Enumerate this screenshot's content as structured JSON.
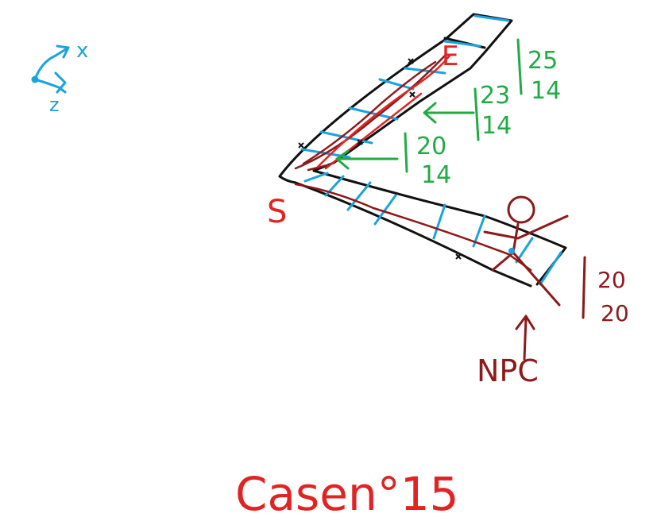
{
  "axes": {
    "x_label": "x",
    "z_label": "z"
  },
  "markers": {
    "start": "S",
    "end": "E",
    "npc": "NPC"
  },
  "dimensions": [
    {
      "top": "25",
      "bottom": "14"
    },
    {
      "top": "23",
      "bottom": "14"
    },
    {
      "top": "20",
      "bottom": "14"
    }
  ],
  "npc_dimension": {
    "top": "20",
    "bottom": "20"
  },
  "caption": "Casen°15",
  "colors": {
    "outline": "#111111",
    "cells": "#1aa3dd",
    "path": "#8c1a1a",
    "route": "#e02424",
    "labels_green": "#22aa44",
    "npc": "#8c1a1a"
  }
}
